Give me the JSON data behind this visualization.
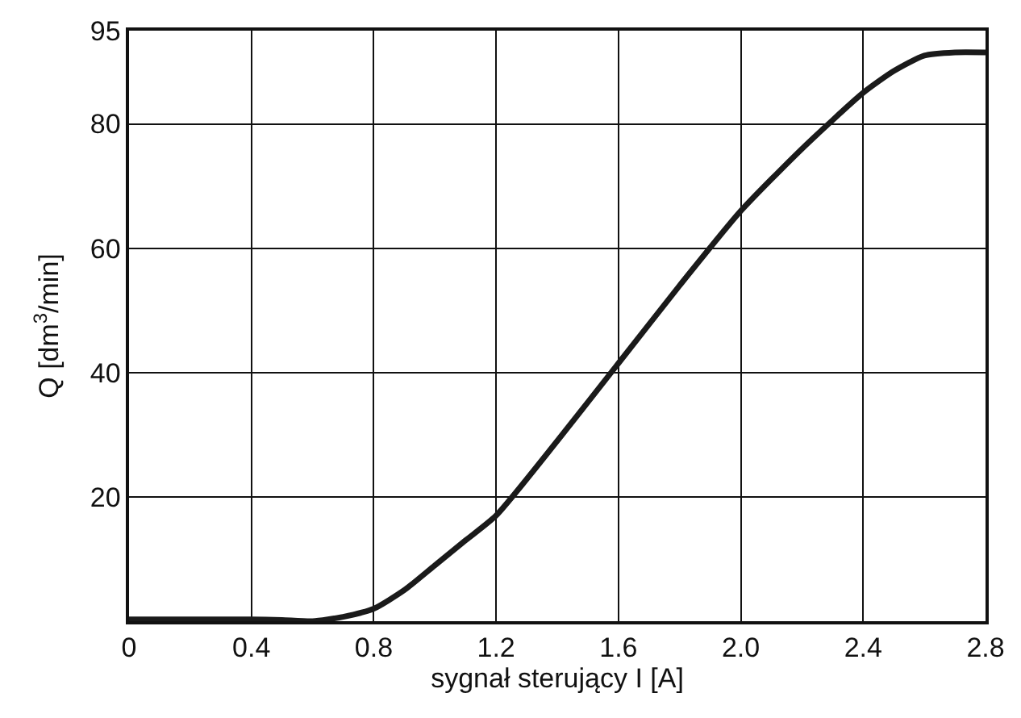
{
  "chart_data": {
    "type": "line",
    "xlabel": "sygnał sterujący I [A]",
    "ylabel": "Q [dm$^{3}$/min]",
    "x": [
      0,
      0.2,
      0.4,
      0.5,
      0.6,
      0.7,
      0.8,
      0.9,
      1.0,
      1.1,
      1.2,
      1.4,
      1.6,
      1.8,
      2.0,
      2.2,
      2.4,
      2.5,
      2.6,
      2.7,
      2.8
    ],
    "series": [
      {
        "color": "#1a1a1a",
        "values": [
          0.3,
          0.3,
          0.3,
          0.2,
          0,
          0.7,
          2,
          5,
          9,
          13,
          17,
          29,
          41.5,
          54,
          66,
          76,
          85,
          88.5,
          91,
          91.5,
          91.5
        ]
      }
    ],
    "xlim": [
      0,
      2.8
    ],
    "xticks": [
      0,
      0.4,
      0.8,
      1.2,
      1.6,
      {
        "value": 2,
        "label": "2.0"
      },
      2.4,
      2.8
    ],
    "ylim": [
      0,
      95
    ],
    "yticks": [
      20,
      40,
      60,
      80,
      95
    ],
    "grid": true,
    "legend": false,
    "marker": "none",
    "line_style": "solid"
  }
}
